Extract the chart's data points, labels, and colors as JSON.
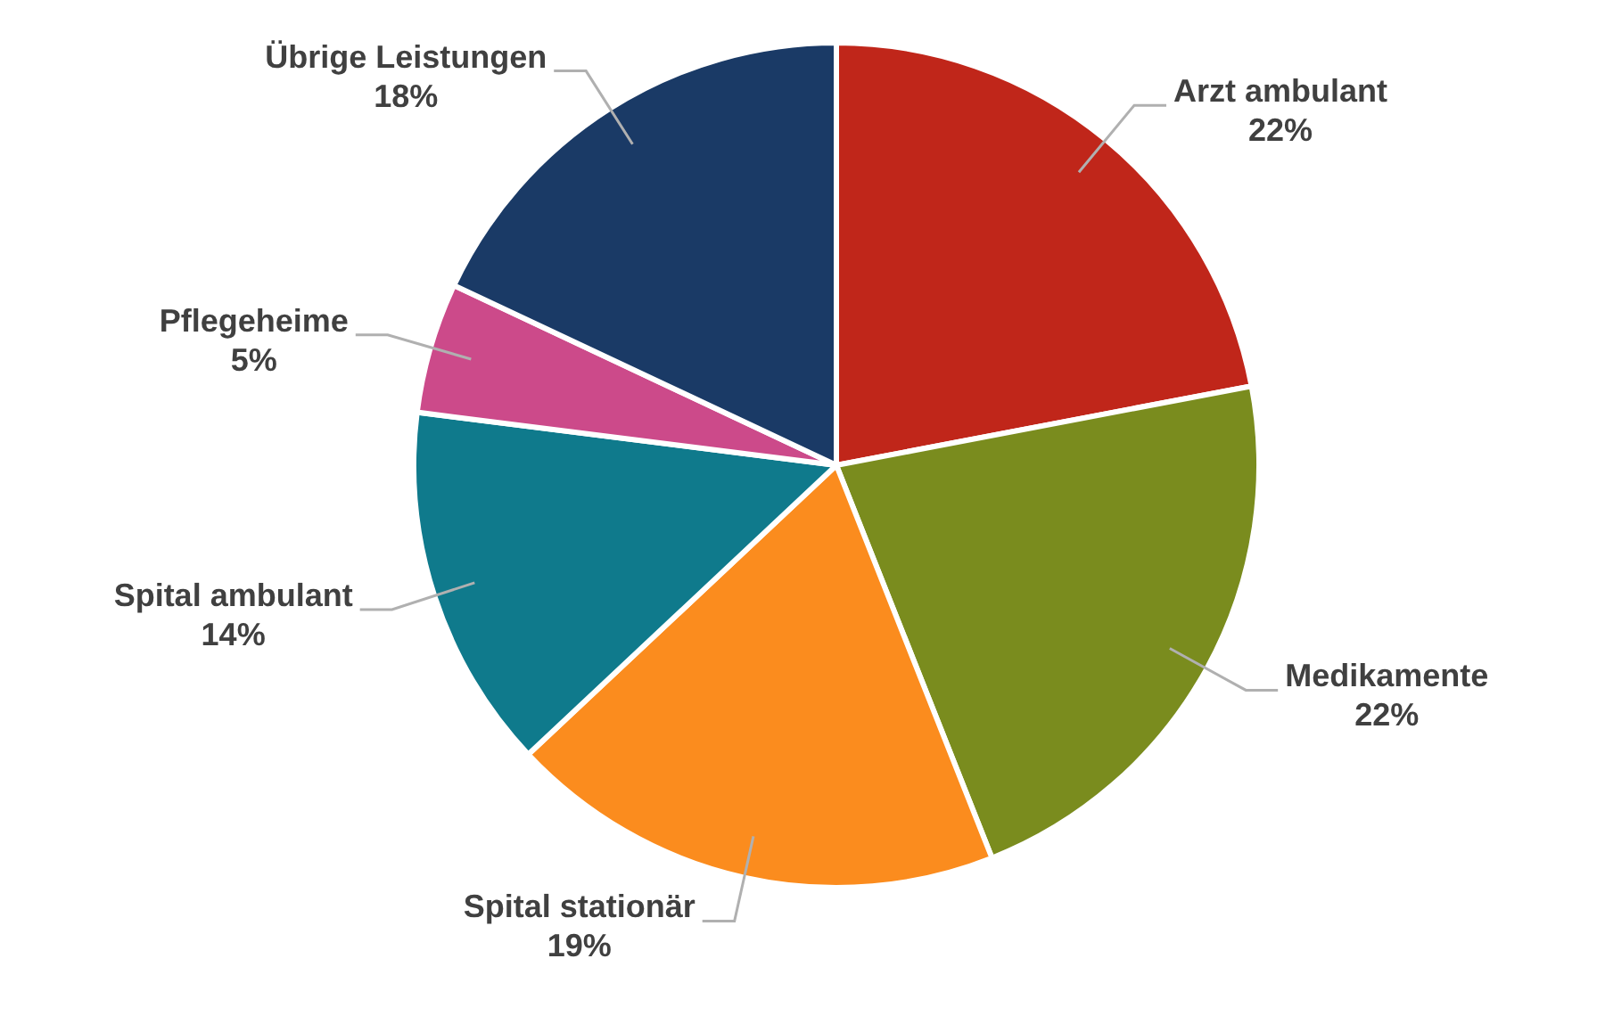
{
  "chart_data": {
    "type": "pie",
    "categories": [
      "Arzt ambulant",
      "Medikamente",
      "Spital stationär",
      "Spital ambulant",
      "Pflegeheime",
      "Übrige Leistungen"
    ],
    "values": [
      22,
      22,
      19,
      14,
      5,
      18
    ],
    "value_labels": [
      "22%",
      "22%",
      "19%",
      "14%",
      "5%",
      "18%"
    ],
    "colors": [
      "#c0261a",
      "#7a8c1e",
      "#fb8c1e",
      "#0f7a8c",
      "#cc4a8a",
      "#1a3a66"
    ],
    "legend": false
  }
}
